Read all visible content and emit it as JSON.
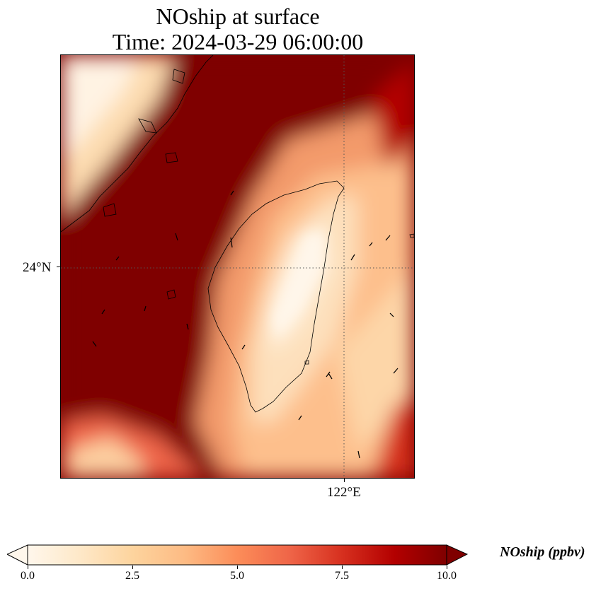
{
  "title": {
    "line1": "NOship at surface",
    "line2": "Time: 2024-03-29 06:00:00"
  },
  "map": {
    "region": "Taiwan Strait and Taiwan",
    "lat_label": "24°N",
    "lon_label": "122°E",
    "gridline_style": "dotted",
    "background_color": "#7f0000",
    "features": [
      "coastline-taiwan",
      "coastline-china",
      "wind-vectors"
    ]
  },
  "colorbar": {
    "label": "NOship (ppbv)",
    "ticks": [
      "0.0",
      "2.5",
      "5.0",
      "7.5",
      "10.0"
    ],
    "min": 0.0,
    "max": 10.0,
    "extend": "both",
    "colormap": "OrRd",
    "colors": [
      "#fff7ec",
      "#fee8c8",
      "#fdd49e",
      "#fdbb84",
      "#fc8d59",
      "#ef6548",
      "#d7301f",
      "#b30000",
      "#7f0000"
    ]
  }
}
